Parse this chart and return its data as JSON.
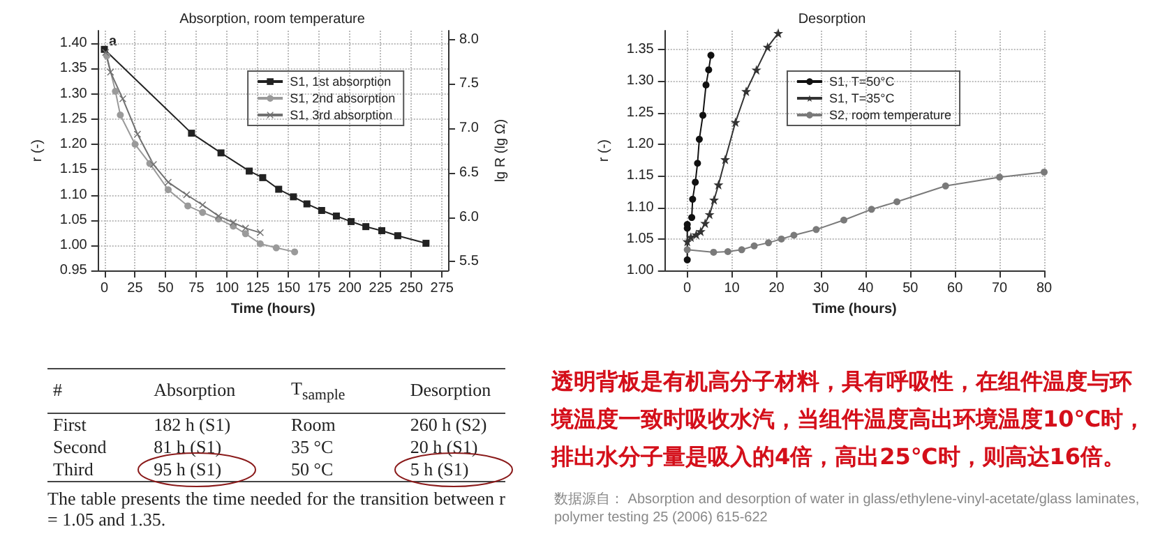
{
  "chart_data": [
    {
      "type": "line",
      "title": "Absorption, room temperature",
      "xlabel": "Time (hours)",
      "ylabel": "r (-)",
      "y2label": "lg R (lg Ω)",
      "annotations": [
        "a"
      ],
      "grid": true,
      "legend": "top right",
      "xlim": [
        -5,
        280
      ],
      "xticks": [
        0,
        25,
        50,
        75,
        100,
        125,
        150,
        175,
        200,
        225,
        250,
        275
      ],
      "ylim": [
        0.95,
        1.425
      ],
      "yticks": [
        {
          "value": 0.95,
          "label": "0.95"
        },
        {
          "value": 1.0,
          "label": "1.00"
        },
        {
          "value": 1.05,
          "label": "1.05"
        },
        {
          "value": 1.1,
          "label": "1.10"
        },
        {
          "value": 1.15,
          "label": "1.15"
        },
        {
          "value": 1.2,
          "label": "1.20"
        },
        {
          "value": 1.25,
          "label": "1.25"
        },
        {
          "value": 1.3,
          "label": "1.30"
        },
        {
          "value": 1.35,
          "label": "1.35"
        },
        {
          "value": 1.4,
          "label": "1.40"
        }
      ],
      "y2lim": [
        5.4,
        8.1
      ],
      "y2ticks": [
        5.5,
        {
          "value": 6,
          "label": "6.0"
        },
        6.5,
        {
          "value": 7,
          "label": "7.0"
        },
        7.5,
        {
          "value": 8,
          "label": "8.0"
        }
      ],
      "series": [
        {
          "name": "S1, 1st absorption",
          "color": "#222222",
          "marker": "square",
          "x": [
            0,
            71,
            95,
            118,
            129,
            142,
            154,
            165,
            177,
            189,
            201,
            213,
            226,
            239,
            262
          ],
          "values": [
            1.388,
            1.222,
            1.183,
            1.147,
            1.134,
            1.111,
            1.096,
            1.082,
            1.069,
            1.058,
            1.047,
            1.037,
            1.029,
            1.019,
            1.004
          ]
        },
        {
          "name": "S1, 2nd absorption",
          "color": "#9a9a9a",
          "marker": "circle",
          "x": [
            2,
            9,
            13,
            25,
            37,
            52,
            68,
            80,
            93,
            105,
            115,
            127,
            140,
            155
          ],
          "values": [
            1.375,
            1.305,
            1.258,
            1.2,
            1.162,
            1.11,
            1.078,
            1.065,
            1.052,
            1.038,
            1.023,
            1.003,
            0.995,
            0.987
          ]
        },
        {
          "name": "S1, 3rd absorption",
          "color": "#707070",
          "marker": "cross",
          "x": [
            1,
            5,
            15,
            27,
            40,
            52,
            67,
            80,
            93,
            105,
            115,
            127
          ],
          "values": [
            1.382,
            1.343,
            1.29,
            1.22,
            1.16,
            1.125,
            1.1,
            1.08,
            1.058,
            1.045,
            1.034,
            1.025
          ]
        }
      ]
    },
    {
      "type": "line",
      "title": "Desorption",
      "xlabel": "Time (hours)",
      "ylabel": "r (-)",
      "grid": true,
      "legend": "top right",
      "xlim": [
        -5,
        80
      ],
      "xticks": [
        0,
        10,
        20,
        30,
        40,
        50,
        60,
        70,
        80
      ],
      "ylim": [
        1.0,
        1.38
      ],
      "yticks": [
        {
          "value": 1.0,
          "label": "1.00"
        },
        {
          "value": 1.05,
          "label": "1.05"
        },
        {
          "value": 1.1,
          "label": "1.10"
        },
        {
          "value": 1.15,
          "label": "1.15"
        },
        {
          "value": 1.2,
          "label": "1.20"
        },
        {
          "value": 1.25,
          "label": "1.25"
        },
        {
          "value": 1.3,
          "label": "1.30"
        },
        {
          "value": 1.35,
          "label": "1.35"
        }
      ],
      "series": [
        {
          "name": "S1, T=50°C",
          "color": "#111111",
          "marker": "circle",
          "x": [
            0,
            0,
            0,
            0.5,
            1,
            1.2,
            1.8,
            2.3,
            2.7,
            3.5,
            4.2,
            4.8,
            5.3
          ],
          "values": [
            1.017,
            1.067,
            1.073,
            null,
            1.084,
            1.113,
            1.14,
            1.17,
            1.208,
            1.246,
            1.294,
            1.318,
            1.341
          ]
        },
        {
          "name": "S1, T=35°C",
          "color": "#333333",
          "marker": "star",
          "x": [
            0,
            0.8,
            2,
            3,
            4,
            5,
            6,
            7,
            8.5,
            10.8,
            13.2,
            15.5,
            18,
            20.4
          ],
          "values": [
            1.046,
            1.053,
            1.057,
            1.062,
            1.075,
            1.089,
            1.112,
            1.136,
            1.176,
            1.235,
            1.284,
            1.318,
            1.354,
            1.376
          ]
        },
        {
          "name": "S2, room temperature",
          "color": "#7a7a7a",
          "marker": "circle",
          "x": [
            0,
            5.9,
            9.1,
            12.2,
            15,
            18.2,
            21.1,
            23.9,
            28.9,
            35.1,
            41.3,
            47,
            57.9,
            70,
            80
          ],
          "values": [
            1.033,
            1.029,
            1.03,
            1.033,
            1.039,
            1.044,
            1.05,
            1.056,
            1.065,
            1.08,
            1.097,
            1.109,
            1.134,
            1.148,
            1.156
          ]
        }
      ]
    },
    {
      "type": "other",
      "annotations": [
        "#",
        "Absorption",
        "T$_{sample}$",
        "Desorption",
        "First",
        "182 h (S1)",
        "Room",
        "260 h (S2)",
        "Second",
        "81 h (S1)",
        "35 °C",
        "20 h (S1)",
        "Third",
        "95 h (S1)",
        "50 °C",
        "5 h (S1)",
        "The table presents the time needed for the transition between r = 1.05 and 1.35.",
        "透明背板是有机高分子材料，具有呼吸性，在组件温度与环境温度一致时吸收水汽，当组件温度高出环境温度10℃时，排出水分子量是吸入的4倍，高出25℃时，则高达16倍。",
        "数据源自： Absorption and desorption of water in glass/ethylene-vinyl-acetate/glass laminates, polymer testing 25 (2006) 615-622"
      ]
    }
  ]
}
